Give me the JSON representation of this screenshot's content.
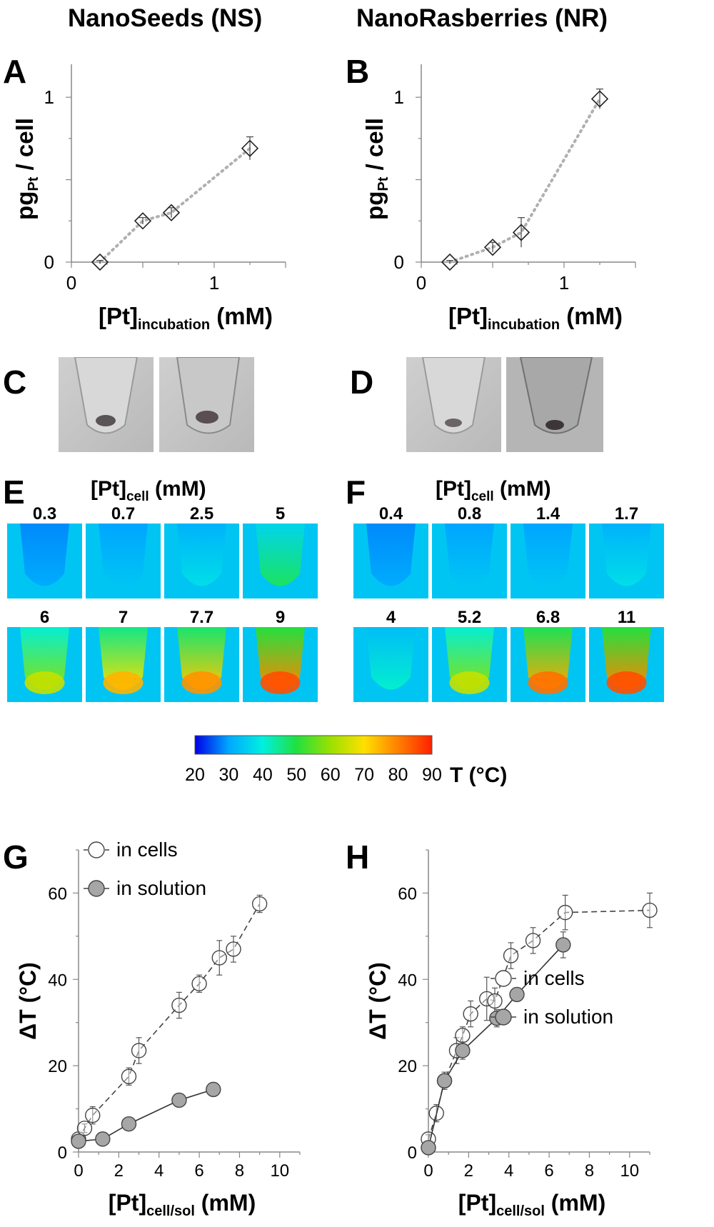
{
  "columns": {
    "left": "NanoSeeds (NS)",
    "right": "NanoRasberries (NR)"
  },
  "panel_letters": {
    "A": "A",
    "B": "B",
    "C": "C",
    "D": "D",
    "E": "E",
    "F": "F",
    "G": "G",
    "H": "H"
  },
  "chart_data": [
    {
      "panel": "A",
      "type": "scatter",
      "ylabel_main": "pg",
      "ylabel_sub": "Pt",
      "ylabel_tail": " / cell",
      "xlabel_main": "[Pt]",
      "xlabel_sub": "incubation",
      "xlabel_tail": " (mM)",
      "xlim": [
        0,
        1.5
      ],
      "ylim": [
        0,
        1.2
      ],
      "xticks": [
        0,
        1
      ],
      "yticks": [
        0,
        1
      ],
      "series": [
        {
          "marker": "diamond-open",
          "line": "dotted",
          "x": [
            0.2,
            0.5,
            0.7,
            1.25
          ],
          "y": [
            0.0,
            0.25,
            0.3,
            0.69
          ],
          "err": [
            0.01,
            0.02,
            0.03,
            0.07
          ]
        }
      ]
    },
    {
      "panel": "B",
      "type": "scatter",
      "ylabel_main": "pg",
      "ylabel_sub": "Pt",
      "ylabel_tail": " / cell",
      "xlabel_main": "[Pt]",
      "xlabel_sub": "incubation",
      "xlabel_tail": " (mM)",
      "xlim": [
        0,
        1.5
      ],
      "ylim": [
        0,
        1.2
      ],
      "xticks": [
        0,
        1
      ],
      "yticks": [
        0,
        1
      ],
      "series": [
        {
          "marker": "diamond-open",
          "line": "dotted",
          "x": [
            0.2,
            0.5,
            0.7,
            1.25
          ],
          "y": [
            0.0,
            0.09,
            0.18,
            0.99
          ],
          "err": [
            0.01,
            0.03,
            0.09,
            0.06
          ]
        }
      ]
    },
    {
      "panel": "G",
      "type": "scatter",
      "ylabel": "ΔT (°C)",
      "xlabel_main": "[Pt]",
      "xlabel_sub": "cell/sol",
      "xlabel_tail": " (mM)",
      "xlim": [
        0,
        11
      ],
      "ylim": [
        0,
        70
      ],
      "xticks": [
        0,
        2,
        4,
        6,
        8,
        10
      ],
      "yticks": [
        0,
        20,
        40,
        60
      ],
      "legend": "top-left",
      "series": [
        {
          "name": "in cells",
          "marker": "circle-open",
          "line": "dashed",
          "x": [
            0,
            0.3,
            0.7,
            2.5,
            3,
            5,
            6,
            7,
            7.7,
            9
          ],
          "y": [
            3,
            5.5,
            8.5,
            17.5,
            23.5,
            34,
            39,
            45,
            47,
            57.5
          ],
          "err": [
            1,
            1,
            2,
            2,
            3,
            3,
            2,
            4,
            3,
            2
          ]
        },
        {
          "name": "in solution",
          "marker": "circle-filled",
          "line": "solid",
          "x": [
            0,
            1.2,
            2.5,
            5,
            6.7
          ],
          "y": [
            2.5,
            3,
            6.5,
            12,
            14.5
          ],
          "err": [
            1,
            1,
            1,
            1,
            1.5
          ]
        }
      ]
    },
    {
      "panel": "H",
      "type": "scatter",
      "ylabel": "ΔT (°C)",
      "xlabel_main": "[Pt]",
      "xlabel_sub": "cell/sol",
      "xlabel_tail": " (mM)",
      "xlim": [
        0,
        11
      ],
      "ylim": [
        0,
        70
      ],
      "xticks": [
        0,
        2,
        4,
        6,
        8,
        10
      ],
      "yticks": [
        0,
        20,
        40,
        60
      ],
      "legend": "bottom-right",
      "series": [
        {
          "name": "in cells",
          "marker": "circle-open",
          "line": "dashed",
          "x": [
            0,
            0.4,
            0.8,
            1.4,
            1.7,
            2.1,
            2.9,
            3.3,
            4.1,
            5.2,
            6.8,
            11
          ],
          "y": [
            3,
            9,
            16.5,
            23.5,
            27,
            32,
            35.5,
            35,
            45.5,
            49,
            55.5,
            56
          ],
          "err": [
            1,
            2,
            2,
            3,
            2,
            3,
            5,
            3,
            3,
            3,
            4,
            4
          ]
        },
        {
          "name": "in solution",
          "marker": "circle-filled",
          "line": "solid",
          "x": [
            0,
            0.8,
            1.7,
            3.4,
            4.4,
            6.7
          ],
          "y": [
            1,
            16.5,
            23.5,
            31,
            36.5,
            48
          ],
          "err": [
            1,
            1,
            2,
            2,
            1.5,
            3
          ]
        }
      ]
    }
  ],
  "thermal": {
    "E": {
      "title_main": "[Pt]",
      "title_sub": "cell",
      "title_tail": " (mM)",
      "labels": [
        "0.3",
        "0.7",
        "2.5",
        "5",
        "6",
        "7",
        "7.7",
        "9"
      ],
      "levels": [
        0.15,
        0.2,
        0.25,
        0.4,
        0.55,
        0.7,
        0.75,
        0.85
      ]
    },
    "F": {
      "title_main": "[Pt]",
      "title_sub": "cell",
      "title_tail": " (mM)",
      "labels": [
        "0.4",
        "0.8",
        "1.4",
        "1.7",
        "4",
        "5.2",
        "6.8",
        "11"
      ],
      "levels": [
        0.15,
        0.2,
        0.2,
        0.25,
        0.3,
        0.55,
        0.8,
        0.85
      ]
    }
  },
  "colorbar": {
    "ticks": [
      "20",
      "30",
      "40",
      "50",
      "60",
      "70",
      "80",
      "90"
    ],
    "label": "T (°C)",
    "colors": [
      "#0000e6",
      "#00a8ff",
      "#00f0e0",
      "#20e040",
      "#9be000",
      "#ffe000",
      "#ff8000",
      "#ff2000"
    ]
  }
}
